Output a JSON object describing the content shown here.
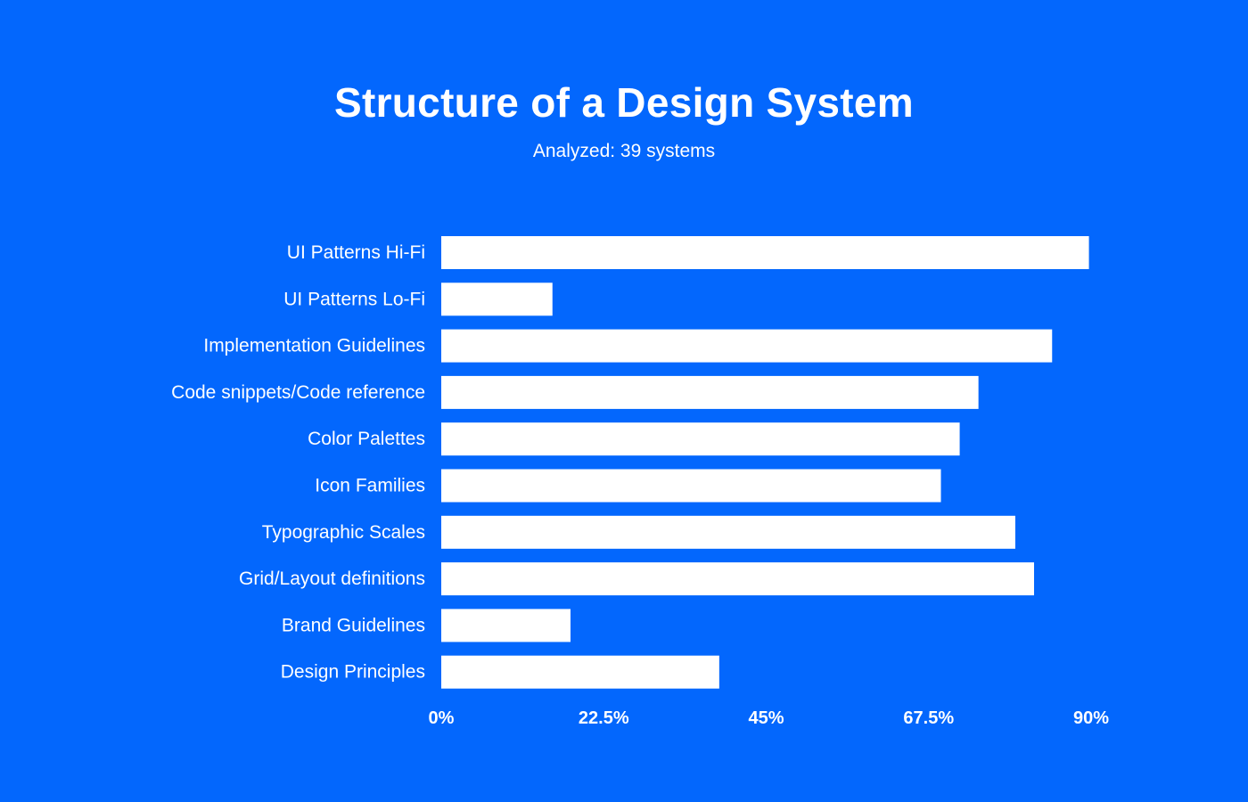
{
  "chart_data": {
    "type": "bar",
    "orientation": "horizontal",
    "title": "Structure of a Design System",
    "subtitle": "Analyzed: 39 systems",
    "xlabel": "",
    "ylabel": "",
    "xlim": [
      0,
      90
    ],
    "x_ticks": [
      "0%",
      "22.5%",
      "45%",
      "67.5%",
      "90%"
    ],
    "x_tick_values": [
      0,
      22.5,
      45,
      67.5,
      90
    ],
    "grid": false,
    "legend": "none",
    "categories": [
      "UI Patterns Hi-Fi",
      "UI Patterns Lo-Fi",
      "Implementation Guidelines",
      "Code snippets/Code reference",
      "Color Palettes",
      "Icon Families",
      "Typographic Scales",
      "Grid/Layout definitions",
      "Brand Guidelines",
      "Design Principles"
    ],
    "values": [
      89.7,
      15.4,
      84.6,
      74.4,
      71.8,
      69.2,
      79.5,
      82.1,
      17.9,
      38.5
    ]
  },
  "colors": {
    "background": "#0367fd",
    "bar": "#ffffff",
    "text": "#ffffff"
  }
}
